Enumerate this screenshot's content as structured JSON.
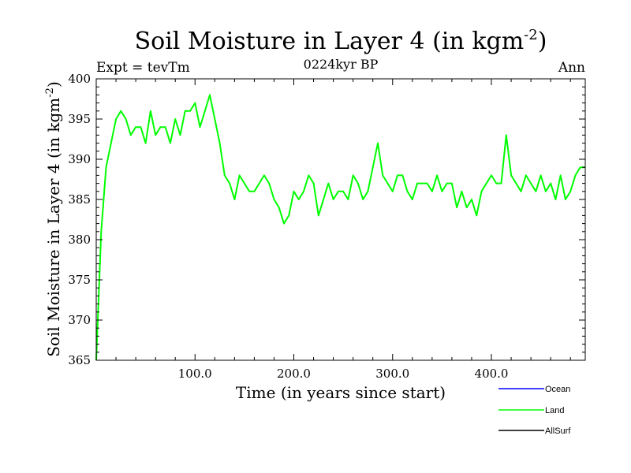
{
  "chart_data": {
    "type": "line",
    "title_main": "Soil Moisture in Layer 4 (in kgm",
    "title_sup": "-2",
    "title_close": ")",
    "subtitle": "0224kyr BP",
    "left_label": "Expt = tevTm",
    "right_label": "Ann",
    "xlabel": "Time (in years since start)",
    "ylabel_main": "Soil Moisture in Layer 4 (in kgm",
    "ylabel_sup": "-2",
    "ylabel_close": ")",
    "xlim": [
      0,
      495
    ],
    "ylim": [
      365,
      400
    ],
    "x_ticks": [
      100,
      200,
      300,
      400
    ],
    "x_tick_labels": [
      "100.0",
      "200.0",
      "300.0",
      "400.0"
    ],
    "y_ticks": [
      365,
      370,
      375,
      380,
      385,
      390,
      395,
      400
    ],
    "y_tick_labels": [
      "365",
      "370",
      "375",
      "380",
      "385",
      "390",
      "395",
      "400"
    ],
    "legend": [
      {
        "name": "Ocean",
        "color": "#0000ff"
      },
      {
        "name": "Land",
        "color": "#00ff00"
      },
      {
        "name": "AllSurf",
        "color": "#000000"
      }
    ],
    "series": [
      {
        "name": "Land",
        "color": "#00ff00",
        "x_start": 0,
        "x_step": 5,
        "values": [
          365,
          381,
          389,
          392,
          395,
          396,
          395,
          393,
          394,
          394,
          392,
          396,
          393,
          394,
          394,
          392,
          395,
          393,
          396,
          396,
          397,
          394,
          396,
          398,
          395,
          392,
          388,
          387,
          385,
          388,
          387,
          386,
          386,
          387,
          388,
          387,
          385,
          384,
          382,
          383,
          386,
          385,
          386,
          388,
          387,
          383,
          385,
          387,
          385,
          386,
          386,
          385,
          388,
          387,
          385,
          386,
          389,
          392,
          388,
          387,
          386,
          388,
          388,
          386,
          385,
          387,
          387,
          387,
          386,
          388,
          386,
          387,
          387,
          384,
          386,
          384,
          385,
          383,
          386,
          387,
          388,
          387,
          387,
          393,
          388,
          387,
          386,
          388,
          387,
          386,
          388,
          386,
          387,
          385,
          388,
          385,
          386,
          388,
          389,
          389
        ]
      }
    ]
  }
}
